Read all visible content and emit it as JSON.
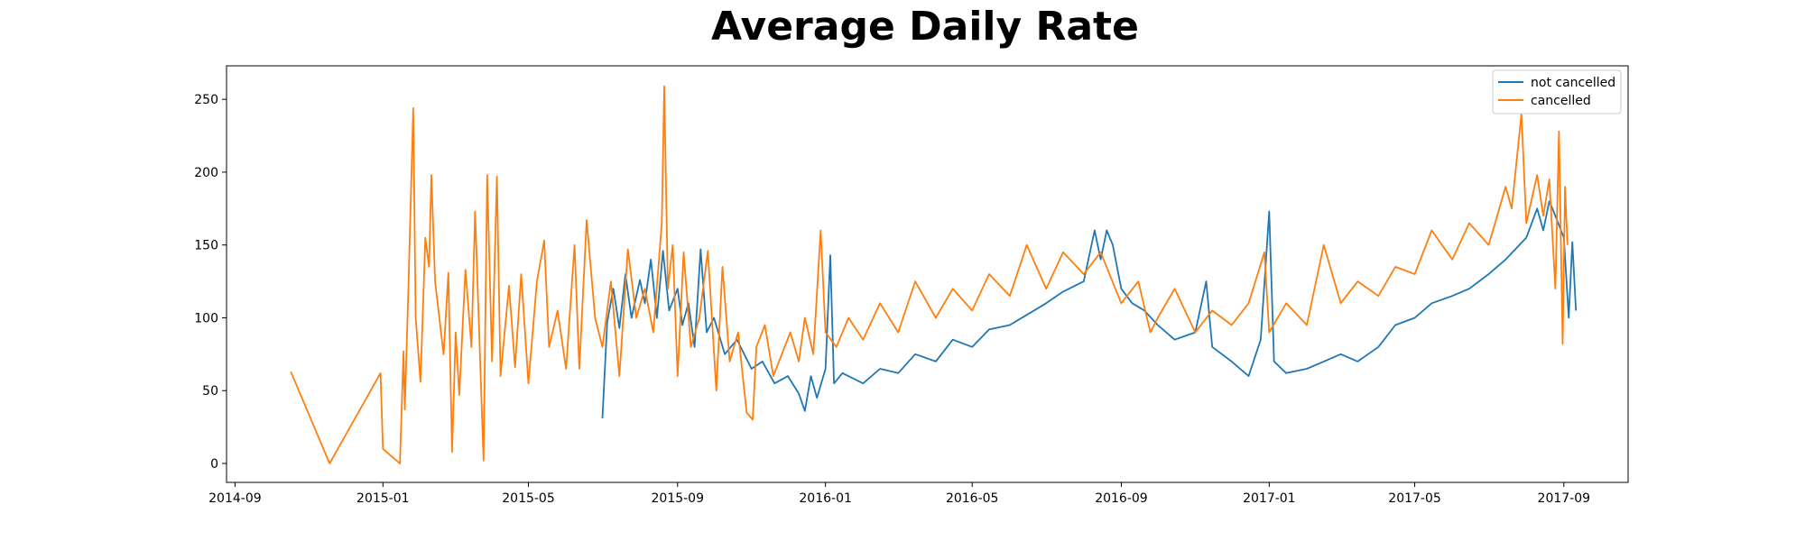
{
  "chart_data": {
    "type": "line",
    "title": "Average Daily Rate",
    "xlabel": "",
    "ylabel": "",
    "x_range": [
      "2014-08-25",
      "2017-10-24"
    ],
    "ylim": [
      -13,
      273
    ],
    "x_ticks": [
      {
        "date": "2014-09-01",
        "label": "2014-09"
      },
      {
        "date": "2015-01-01",
        "label": "2015-01"
      },
      {
        "date": "2015-05-01",
        "label": "2015-05"
      },
      {
        "date": "2015-09-01",
        "label": "2015-09"
      },
      {
        "date": "2016-01-01",
        "label": "2016-01"
      },
      {
        "date": "2016-05-01",
        "label": "2016-05"
      },
      {
        "date": "2016-09-01",
        "label": "2016-09"
      },
      {
        "date": "2017-01-01",
        "label": "2017-01"
      },
      {
        "date": "2017-05-01",
        "label": "2017-05"
      },
      {
        "date": "2017-09-01",
        "label": "2017-09"
      }
    ],
    "y_ticks": [
      0,
      50,
      100,
      150,
      200,
      250
    ],
    "grid": false,
    "legend_position": "top-right",
    "series": [
      {
        "name": "not cancelled",
        "color": "#1f77b4",
        "points": [
          [
            "2015-07-01",
            31
          ],
          [
            "2015-07-05",
            97
          ],
          [
            "2015-07-10",
            120
          ],
          [
            "2015-07-15",
            93
          ],
          [
            "2015-07-20",
            130
          ],
          [
            "2015-07-25",
            100
          ],
          [
            "2015-08-01",
            126
          ],
          [
            "2015-08-05",
            110
          ],
          [
            "2015-08-10",
            140
          ],
          [
            "2015-08-15",
            100
          ],
          [
            "2015-08-20",
            146
          ],
          [
            "2015-08-25",
            105
          ],
          [
            "2015-09-01",
            120
          ],
          [
            "2015-09-05",
            95
          ],
          [
            "2015-09-10",
            110
          ],
          [
            "2015-09-15",
            80
          ],
          [
            "2015-09-20",
            147
          ],
          [
            "2015-09-25",
            90
          ],
          [
            "2015-10-01",
            100
          ],
          [
            "2015-10-10",
            75
          ],
          [
            "2015-10-20",
            85
          ],
          [
            "2015-11-01",
            65
          ],
          [
            "2015-11-10",
            70
          ],
          [
            "2015-11-20",
            55
          ],
          [
            "2015-12-01",
            60
          ],
          [
            "2015-12-10",
            48
          ],
          [
            "2015-12-15",
            36
          ],
          [
            "2015-12-20",
            60
          ],
          [
            "2015-12-25",
            45
          ],
          [
            "2016-01-01",
            65
          ],
          [
            "2016-01-05",
            143
          ],
          [
            "2016-01-08",
            55
          ],
          [
            "2016-01-15",
            62
          ],
          [
            "2016-02-01",
            55
          ],
          [
            "2016-02-15",
            65
          ],
          [
            "2016-03-01",
            62
          ],
          [
            "2016-03-15",
            75
          ],
          [
            "2016-04-01",
            70
          ],
          [
            "2016-04-15",
            85
          ],
          [
            "2016-05-01",
            80
          ],
          [
            "2016-05-15",
            92
          ],
          [
            "2016-06-01",
            95
          ],
          [
            "2016-06-15",
            102
          ],
          [
            "2016-07-01",
            110
          ],
          [
            "2016-07-15",
            118
          ],
          [
            "2016-08-01",
            125
          ],
          [
            "2016-08-10",
            160
          ],
          [
            "2016-08-15",
            140
          ],
          [
            "2016-08-20",
            160
          ],
          [
            "2016-08-25",
            150
          ],
          [
            "2016-09-01",
            120
          ],
          [
            "2016-09-10",
            110
          ],
          [
            "2016-09-20",
            105
          ],
          [
            "2016-10-01",
            95
          ],
          [
            "2016-10-15",
            85
          ],
          [
            "2016-11-01",
            90
          ],
          [
            "2016-11-10",
            125
          ],
          [
            "2016-11-15",
            80
          ],
          [
            "2016-12-01",
            70
          ],
          [
            "2016-12-15",
            60
          ],
          [
            "2016-12-25",
            85
          ],
          [
            "2017-01-01",
            173
          ],
          [
            "2017-01-05",
            70
          ],
          [
            "2017-01-15",
            62
          ],
          [
            "2017-02-01",
            65
          ],
          [
            "2017-02-15",
            70
          ],
          [
            "2017-03-01",
            75
          ],
          [
            "2017-03-15",
            70
          ],
          [
            "2017-04-01",
            80
          ],
          [
            "2017-04-15",
            95
          ],
          [
            "2017-05-01",
            100
          ],
          [
            "2017-05-15",
            110
          ],
          [
            "2017-06-01",
            115
          ],
          [
            "2017-06-15",
            120
          ],
          [
            "2017-07-01",
            130
          ],
          [
            "2017-07-15",
            140
          ],
          [
            "2017-08-01",
            155
          ],
          [
            "2017-08-10",
            175
          ],
          [
            "2017-08-15",
            160
          ],
          [
            "2017-08-20",
            180
          ],
          [
            "2017-08-25",
            170
          ],
          [
            "2017-09-01",
            155
          ],
          [
            "2017-09-05",
            100
          ],
          [
            "2017-09-08",
            152
          ],
          [
            "2017-09-11",
            105
          ]
        ]
      },
      {
        "name": "cancelled",
        "color": "#ff7f0e",
        "points": [
          [
            "2014-10-17",
            63
          ],
          [
            "2014-11-18",
            0
          ],
          [
            "2014-12-30",
            62
          ],
          [
            "2015-01-01",
            10
          ],
          [
            "2015-01-15",
            0
          ],
          [
            "2015-01-18",
            77
          ],
          [
            "2015-01-19",
            37
          ],
          [
            "2015-01-22",
            120
          ],
          [
            "2015-01-26",
            244
          ],
          [
            "2015-01-28",
            100
          ],
          [
            "2015-02-01",
            56
          ],
          [
            "2015-02-05",
            155
          ],
          [
            "2015-02-08",
            135
          ],
          [
            "2015-02-10",
            198
          ],
          [
            "2015-02-13",
            125
          ],
          [
            "2015-02-20",
            75
          ],
          [
            "2015-02-24",
            131
          ],
          [
            "2015-02-27",
            8
          ],
          [
            "2015-03-02",
            90
          ],
          [
            "2015-03-05",
            47
          ],
          [
            "2015-03-10",
            133
          ],
          [
            "2015-03-15",
            80
          ],
          [
            "2015-03-18",
            173
          ],
          [
            "2015-03-21",
            100
          ],
          [
            "2015-03-25",
            2
          ],
          [
            "2015-03-28",
            198
          ],
          [
            "2015-04-01",
            70
          ],
          [
            "2015-04-05",
            197
          ],
          [
            "2015-04-08",
            60
          ],
          [
            "2015-04-15",
            122
          ],
          [
            "2015-04-20",
            66
          ],
          [
            "2015-04-25",
            130
          ],
          [
            "2015-05-01",
            55
          ],
          [
            "2015-05-08",
            125
          ],
          [
            "2015-05-14",
            153
          ],
          [
            "2015-05-18",
            80
          ],
          [
            "2015-05-25",
            105
          ],
          [
            "2015-06-01",
            65
          ],
          [
            "2015-06-08",
            150
          ],
          [
            "2015-06-12",
            65
          ],
          [
            "2015-06-18",
            167
          ],
          [
            "2015-06-25",
            100
          ],
          [
            "2015-07-01",
            80
          ],
          [
            "2015-07-08",
            125
          ],
          [
            "2015-07-15",
            60
          ],
          [
            "2015-07-22",
            147
          ],
          [
            "2015-07-29",
            100
          ],
          [
            "2015-08-05",
            120
          ],
          [
            "2015-08-12",
            90
          ],
          [
            "2015-08-19",
            165
          ],
          [
            "2015-08-21",
            259
          ],
          [
            "2015-08-24",
            120
          ],
          [
            "2015-08-28",
            150
          ],
          [
            "2015-09-01",
            60
          ],
          [
            "2015-09-06",
            145
          ],
          [
            "2015-09-12",
            80
          ],
          [
            "2015-09-19",
            100
          ],
          [
            "2015-09-26",
            146
          ],
          [
            "2015-10-03",
            50
          ],
          [
            "2015-10-08",
            135
          ],
          [
            "2015-10-14",
            70
          ],
          [
            "2015-10-21",
            90
          ],
          [
            "2015-10-28",
            35
          ],
          [
            "2015-11-02",
            30
          ],
          [
            "2015-11-05",
            80
          ],
          [
            "2015-11-12",
            95
          ],
          [
            "2015-11-19",
            60
          ],
          [
            "2015-11-26",
            75
          ],
          [
            "2015-12-03",
            90
          ],
          [
            "2015-12-10",
            70
          ],
          [
            "2015-12-15",
            100
          ],
          [
            "2015-12-22",
            75
          ],
          [
            "2015-12-28",
            160
          ],
          [
            "2016-01-01",
            90
          ],
          [
            "2016-01-10",
            80
          ],
          [
            "2016-01-20",
            100
          ],
          [
            "2016-02-01",
            85
          ],
          [
            "2016-02-15",
            110
          ],
          [
            "2016-03-01",
            90
          ],
          [
            "2016-03-15",
            125
          ],
          [
            "2016-04-01",
            100
          ],
          [
            "2016-04-15",
            120
          ],
          [
            "2016-05-01",
            105
          ],
          [
            "2016-05-15",
            130
          ],
          [
            "2016-06-01",
            115
          ],
          [
            "2016-06-15",
            150
          ],
          [
            "2016-07-01",
            120
          ],
          [
            "2016-07-15",
            145
          ],
          [
            "2016-08-01",
            130
          ],
          [
            "2016-08-15",
            145
          ],
          [
            "2016-09-01",
            110
          ],
          [
            "2016-09-15",
            125
          ],
          [
            "2016-09-25",
            90
          ],
          [
            "2016-10-01",
            100
          ],
          [
            "2016-10-15",
            120
          ],
          [
            "2016-11-01",
            90
          ],
          [
            "2016-11-15",
            105
          ],
          [
            "2016-12-01",
            95
          ],
          [
            "2016-12-15",
            110
          ],
          [
            "2016-12-28",
            145
          ],
          [
            "2017-01-01",
            90
          ],
          [
            "2017-01-15",
            110
          ],
          [
            "2017-02-01",
            95
          ],
          [
            "2017-02-15",
            150
          ],
          [
            "2017-03-01",
            110
          ],
          [
            "2017-03-15",
            125
          ],
          [
            "2017-04-01",
            115
          ],
          [
            "2017-04-15",
            135
          ],
          [
            "2017-05-01",
            130
          ],
          [
            "2017-05-15",
            160
          ],
          [
            "2017-06-01",
            140
          ],
          [
            "2017-06-15",
            165
          ],
          [
            "2017-07-01",
            150
          ],
          [
            "2017-07-15",
            190
          ],
          [
            "2017-07-20",
            175
          ],
          [
            "2017-07-28",
            240
          ],
          [
            "2017-08-01",
            165
          ],
          [
            "2017-08-10",
            198
          ],
          [
            "2017-08-15",
            170
          ],
          [
            "2017-08-20",
            195
          ],
          [
            "2017-08-25",
            120
          ],
          [
            "2017-08-28",
            228
          ],
          [
            "2017-08-31",
            82
          ],
          [
            "2017-09-02",
            190
          ],
          [
            "2017-09-04",
            150
          ]
        ]
      }
    ]
  }
}
